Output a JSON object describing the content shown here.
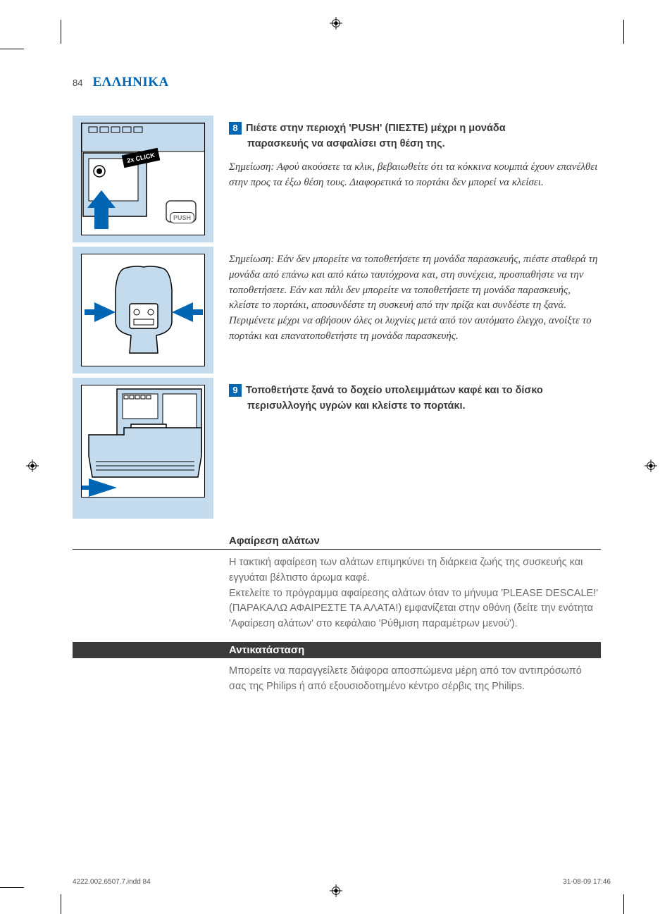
{
  "colors": {
    "accent_blue": "#0066b3",
    "light_blue_bg": "#c4dbed",
    "dark_bar": "#3a3a3a",
    "text_gray": "#6a6a6a",
    "arrow_blue": "#0066b3"
  },
  "page_number": "84",
  "language_header": "ΕΛΛΗΝΙΚΑ",
  "steps": {
    "step8": {
      "num": "8",
      "line1": "Πιέστε στην περιοχή 'PUSH' (ΠΙΕΣΤΕ) μέχρι η μονάδα",
      "line2": "παρασκευής να ασφαλίσει στη θέση της.",
      "note": "Σημείωση: Αφού ακούσετε τα κλικ, βεβαιωθείτε ότι τα κόκκινα κουμπιά έχουν επανέλθει στην προς τα έξω θέση τους. Διαφορετικά το πορτάκι δεν μπορεί να κλείσει.",
      "illus": {
        "badge": "2x CLICK",
        "button_label": "PUSH"
      }
    },
    "middle_note": "Σημείωση: Εάν δεν μπορείτε να τοποθετήσετε τη μονάδα παρασκευής, πιέστε σταθερά τη μονάδα από επάνω και από κάτω ταυτόχρονα και, στη συνέχεια, προσπαθήστε να την τοποθετήσετε. Εάν και πάλι δεν μπορείτε να τοποθετήσετε τη μονάδα παρασκευής, κλείστε το πορτάκι, αποσυνδέστε τη συσκευή από την πρίζα και συνδέστε τη ξανά. Περιμένετε μέχρι να σβήσουν όλες οι λυχνίες μετά από τον αυτόματο έλεγχο, ανοίξτε το πορτάκι και επανατοποθετήστε τη μονάδα παρασκευής.",
    "step9": {
      "num": "9",
      "line1": "Τοποθετήστε ξανά το δοχείο υπολειμμάτων καφέ και το δίσκο",
      "line2": "περισυλλογής υγρών και κλείστε το πορτάκι."
    }
  },
  "sections": {
    "descaling": {
      "heading": "Αφαίρεση αλάτων",
      "body": "Η τακτική αφαίρεση των αλάτων επιμηκύνει τη διάρκεια ζωής της συσκευής και εγγυάται βέλτιστο άρωμα καφέ.\nΕκτελείτε το πρόγραμμα αφαίρεσης αλάτων όταν το μήνυμα 'PLEASE DESCALE!' (ΠΑΡΑΚΑΛΩ ΑΦΑΙΡΕΣΤΕ ΤΑ ΑΛΑΤΑ!) εμφανίζεται στην οθόνη (δείτε την ενότητα 'Αφαίρεση αλάτων' στο κεφάλαιο 'Ρύθμιση παραμέτρων μενού')."
    },
    "replacement": {
      "heading": "Αντικατάσταση",
      "body": "Μπορείτε να παραγγείλετε διάφορα αποσπώμενα μέρη από τον αντιπρόσωπό σας της Philips ή από εξουσιοδοτημένο κέντρο σέρβις της Philips."
    }
  },
  "footer": {
    "left": "4222.002.6507.7.indd   84",
    "right": "31-08-09   17:46"
  }
}
